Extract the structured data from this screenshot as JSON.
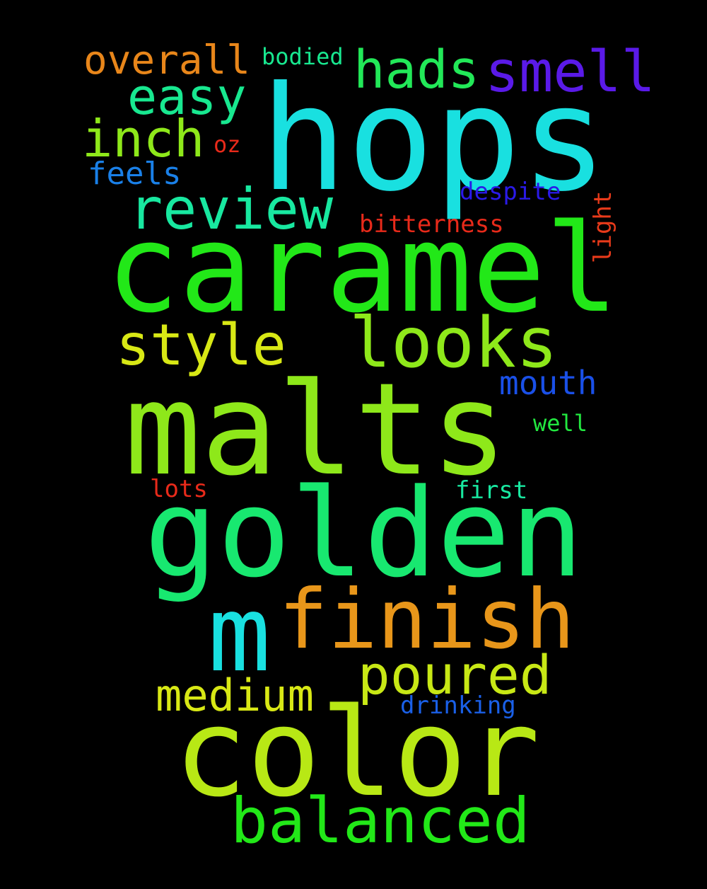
{
  "background_color": "#000000",
  "words": [
    {
      "key": "hops",
      "text": "hops",
      "color": "#19e0e0"
    },
    {
      "key": "caramel",
      "text": "caramel",
      "color": "#22e818"
    },
    {
      "key": "malts",
      "text": "malts",
      "color": "#8ee81a"
    },
    {
      "key": "golden",
      "text": "golden",
      "color": "#18e870"
    },
    {
      "key": "color",
      "text": "color",
      "color": "#b8e815"
    },
    {
      "key": "m",
      "text": "m",
      "color": "#19e0e0"
    },
    {
      "key": "finish",
      "text": "finish",
      "color": "#e8961a"
    },
    {
      "key": "looks",
      "text": "looks",
      "color": "#8ee81a"
    },
    {
      "key": "balanced",
      "text": "balanced",
      "color": "#22e818"
    },
    {
      "key": "smell",
      "text": "smell",
      "color": "#5a1ae8"
    },
    {
      "key": "review",
      "text": "review",
      "color": "#18e8a0"
    },
    {
      "key": "style",
      "text": "style",
      "color": "#d8e815"
    },
    {
      "key": "hads",
      "text": "hads",
      "color": "#22e858"
    },
    {
      "key": "poured",
      "text": "poured",
      "color": "#c8e815"
    },
    {
      "key": "inch",
      "text": "inch",
      "color": "#8ee81a"
    },
    {
      "key": "easy",
      "text": "easy",
      "color": "#18e890"
    },
    {
      "key": "medium",
      "text": "medium",
      "color": "#d8e815"
    },
    {
      "key": "overall",
      "text": "overall",
      "color": "#e8861a"
    },
    {
      "key": "mouth",
      "text": "mouth",
      "color": "#1a50e8"
    },
    {
      "key": "feels",
      "text": "feels",
      "color": "#1a80e8"
    },
    {
      "key": "despite",
      "text": "despite",
      "color": "#2a1ae8"
    },
    {
      "key": "bitterness",
      "text": "bitterness",
      "color": "#e82a1a"
    },
    {
      "key": "drinking",
      "text": "drinking",
      "color": "#1a60e8"
    },
    {
      "key": "light",
      "text": "light",
      "color": "#e83a1a"
    },
    {
      "key": "bodied",
      "text": "bodied",
      "color": "#18e890"
    },
    {
      "key": "well",
      "text": "well",
      "color": "#22e840"
    },
    {
      "key": "first",
      "text": "first",
      "color": "#18e8a0"
    },
    {
      "key": "lots",
      "text": "lots",
      "color": "#e82a1a"
    },
    {
      "key": "oz",
      "text": "oz",
      "color": "#e82a1a"
    }
  ]
}
